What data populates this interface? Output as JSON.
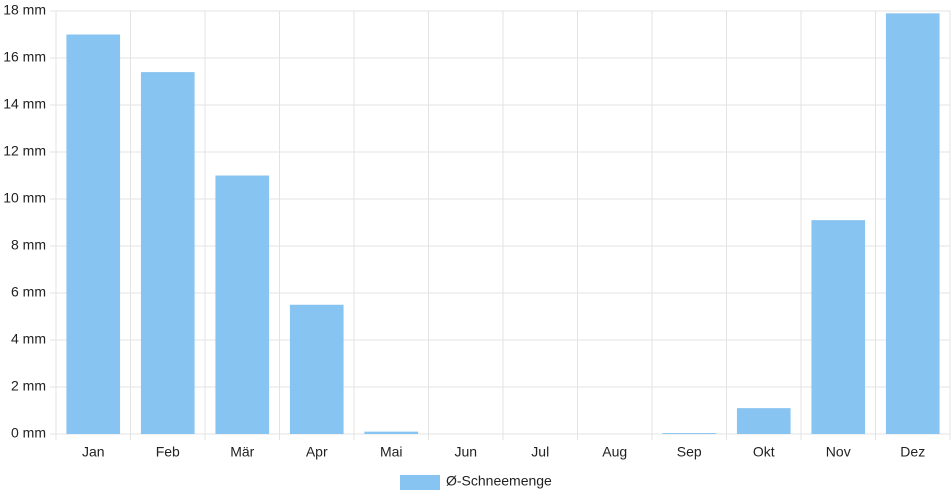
{
  "chart_data": {
    "type": "bar",
    "categories": [
      "Jan",
      "Feb",
      "Mär",
      "Apr",
      "Mai",
      "Jun",
      "Jul",
      "Aug",
      "Sep",
      "Okt",
      "Nov",
      "Dez"
    ],
    "series": [
      {
        "name": "Ø-Schneemenge",
        "color": "#88c4f1",
        "values": [
          17.0,
          15.4,
          11.0,
          5.5,
          0.1,
          0,
          0,
          0,
          0.04,
          1.1,
          9.1,
          17.9
        ]
      }
    ],
    "ylim": [
      0,
      18
    ],
    "yticks": [
      {
        "value": 0,
        "label": "0 mm"
      },
      {
        "value": 2,
        "label": "2 mm"
      },
      {
        "value": 4,
        "label": "4 mm"
      },
      {
        "value": 6,
        "label": "6 mm"
      },
      {
        "value": 8,
        "label": "8 mm"
      },
      {
        "value": 10,
        "label": "10 mm"
      },
      {
        "value": 12,
        "label": "12 mm"
      },
      {
        "value": 14,
        "label": "14 mm"
      },
      {
        "value": 16,
        "label": "16 mm"
      },
      {
        "value": 18,
        "label": "18 mm"
      }
    ],
    "grid": true,
    "legend": "bottom"
  }
}
